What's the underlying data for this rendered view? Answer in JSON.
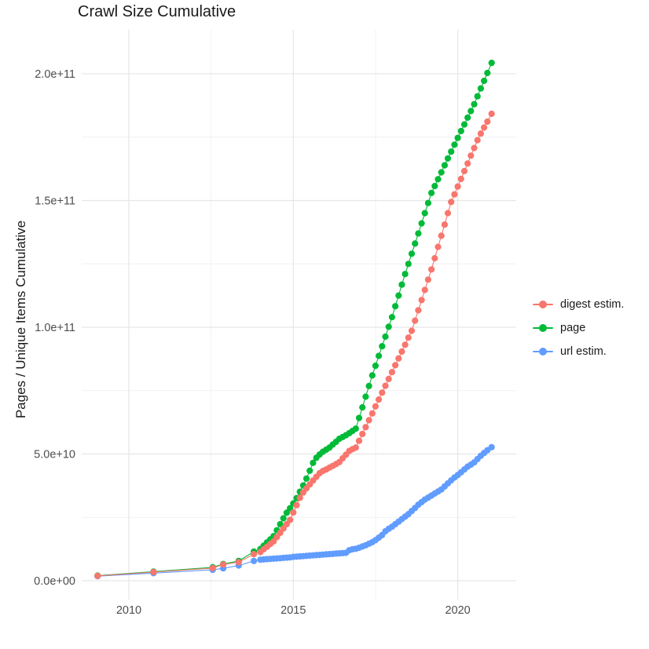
{
  "title": "Crawl Size Cumulative",
  "chart_data": {
    "type": "scatter",
    "title": "Crawl Size Cumulative",
    "xlabel": "",
    "ylabel": "Pages / Unique Items Cumulative",
    "values_in": "billions (1e9)",
    "xlim": [
      2008.57,
      2021.77
    ],
    "ylim_billions": [
      0,
      217
    ],
    "grid": "on",
    "legend_position": "right",
    "x_ticks": [
      {
        "v": 2010,
        "label": "2010"
      },
      {
        "v": 2015,
        "label": "2015"
      },
      {
        "v": 2020,
        "label": "2020"
      }
    ],
    "x_minor": [
      2012.5,
      2017.5
    ],
    "y_ticks": [
      {
        "v": 0,
        "label": "0.0e+00"
      },
      {
        "v": 50,
        "label": "5.0e+10"
      },
      {
        "v": 100,
        "label": "1.0e+11"
      },
      {
        "v": 150,
        "label": "1.5e+11"
      },
      {
        "v": 200,
        "label": "2.0e+11"
      }
    ],
    "y_minor": [
      25,
      75,
      125,
      175
    ],
    "series": [
      {
        "name": "digest estim.",
        "color": "#F8766D",
        "points": [
          [
            2009.05,
            1.9
          ],
          [
            2010.75,
            3.4
          ],
          [
            2012.55,
            5.0
          ],
          [
            2012.87,
            6.4
          ],
          [
            2013.34,
            7.3
          ],
          [
            2013.8,
            10.5
          ],
          [
            2014.0,
            11.3
          ],
          [
            2014.1,
            12.4
          ],
          [
            2014.2,
            13.4
          ],
          [
            2014.3,
            14.5
          ],
          [
            2014.4,
            15.5
          ],
          [
            2014.5,
            17.2
          ],
          [
            2014.6,
            18.9
          ],
          [
            2014.7,
            20.6
          ],
          [
            2014.8,
            22.3
          ],
          [
            2014.9,
            24.0
          ],
          [
            2015.0,
            26.9
          ],
          [
            2015.1,
            29.8
          ],
          [
            2015.2,
            32.7
          ],
          [
            2015.3,
            34.8
          ],
          [
            2015.4,
            36.4
          ],
          [
            2015.5,
            38.0
          ],
          [
            2015.6,
            39.5
          ],
          [
            2015.7,
            41.0
          ],
          [
            2015.8,
            42.4
          ],
          [
            2015.9,
            43.3
          ],
          [
            2016.0,
            43.9
          ],
          [
            2016.1,
            44.6
          ],
          [
            2016.2,
            45.3
          ],
          [
            2016.3,
            46.0
          ],
          [
            2016.4,
            46.8
          ],
          [
            2016.5,
            48.3
          ],
          [
            2016.6,
            49.7
          ],
          [
            2016.7,
            51.2
          ],
          [
            2016.8,
            51.9
          ],
          [
            2016.9,
            52.5
          ],
          [
            2017.0,
            55.2
          ],
          [
            2017.1,
            57.9
          ],
          [
            2017.2,
            60.6
          ],
          [
            2017.3,
            63.3
          ],
          [
            2017.4,
            66.0
          ],
          [
            2017.5,
            68.8
          ],
          [
            2017.6,
            71.5
          ],
          [
            2017.7,
            74.2
          ],
          [
            2017.8,
            76.9
          ],
          [
            2017.9,
            79.6
          ],
          [
            2018.0,
            82.3
          ],
          [
            2018.1,
            85.0
          ],
          [
            2018.2,
            87.7
          ],
          [
            2018.3,
            90.4
          ],
          [
            2018.4,
            93.1
          ],
          [
            2018.5,
            95.9
          ],
          [
            2018.6,
            98.6
          ],
          [
            2018.7,
            102.6
          ],
          [
            2018.8,
            106.7
          ],
          [
            2018.9,
            110.7
          ],
          [
            2019.0,
            114.7
          ],
          [
            2019.1,
            118.8
          ],
          [
            2019.2,
            122.8
          ],
          [
            2019.3,
            127.2
          ],
          [
            2019.4,
            131.7
          ],
          [
            2019.5,
            136.1
          ],
          [
            2019.6,
            140.5
          ],
          [
            2019.7,
            145.0
          ],
          [
            2019.8,
            149.4
          ],
          [
            2019.9,
            152.4
          ],
          [
            2020.0,
            155.5
          ],
          [
            2020.1,
            158.5
          ],
          [
            2020.2,
            161.6
          ],
          [
            2020.3,
            164.6
          ],
          [
            2020.4,
            167.7
          ],
          [
            2020.5,
            170.7
          ],
          [
            2020.6,
            173.8
          ],
          [
            2020.7,
            176.4
          ],
          [
            2020.8,
            178.8
          ],
          [
            2020.9,
            181.1
          ],
          [
            2021.03,
            184.2
          ]
        ]
      },
      {
        "name": "page",
        "color": "#00BA38",
        "points": [
          [
            2009.05,
            2.0
          ],
          [
            2010.75,
            3.6
          ],
          [
            2012.55,
            5.3
          ],
          [
            2012.87,
            6.6
          ],
          [
            2013.34,
            7.8
          ],
          [
            2013.8,
            11.5
          ],
          [
            2014.0,
            12.5
          ],
          [
            2014.1,
            13.8
          ],
          [
            2014.2,
            15.1
          ],
          [
            2014.3,
            16.3
          ],
          [
            2014.4,
            17.6
          ],
          [
            2014.5,
            19.9
          ],
          [
            2014.6,
            22.3
          ],
          [
            2014.7,
            24.6
          ],
          [
            2014.8,
            26.8
          ],
          [
            2014.9,
            28.6
          ],
          [
            2015.0,
            30.5
          ],
          [
            2015.1,
            32.6
          ],
          [
            2015.2,
            35.1
          ],
          [
            2015.3,
            37.6
          ],
          [
            2015.4,
            40.3
          ],
          [
            2015.5,
            43.4
          ],
          [
            2015.6,
            46.5
          ],
          [
            2015.7,
            48.5
          ],
          [
            2015.8,
            49.8
          ],
          [
            2015.9,
            50.9
          ],
          [
            2016.0,
            51.7
          ],
          [
            2016.1,
            52.5
          ],
          [
            2016.2,
            53.7
          ],
          [
            2016.3,
            54.8
          ],
          [
            2016.4,
            56.0
          ],
          [
            2016.5,
            56.7
          ],
          [
            2016.6,
            57.4
          ],
          [
            2016.7,
            58.2
          ],
          [
            2016.8,
            59.1
          ],
          [
            2016.9,
            60.0
          ],
          [
            2017.0,
            64.2
          ],
          [
            2017.1,
            68.4
          ],
          [
            2017.2,
            72.6
          ],
          [
            2017.3,
            76.8
          ],
          [
            2017.4,
            81.0
          ],
          [
            2017.5,
            84.8
          ],
          [
            2017.6,
            88.7
          ],
          [
            2017.7,
            92.5
          ],
          [
            2017.8,
            96.3
          ],
          [
            2017.9,
            100.2
          ],
          [
            2018.0,
            104.0
          ],
          [
            2018.1,
            108.3
          ],
          [
            2018.2,
            112.5
          ],
          [
            2018.3,
            116.8
          ],
          [
            2018.4,
            121.0
          ],
          [
            2018.5,
            125.0
          ],
          [
            2018.6,
            129.0
          ],
          [
            2018.7,
            133.0
          ],
          [
            2018.8,
            137.0
          ],
          [
            2018.9,
            141.0
          ],
          [
            2019.0,
            145.0
          ],
          [
            2019.1,
            149.0
          ],
          [
            2019.2,
            153.0
          ],
          [
            2019.3,
            155.7
          ],
          [
            2019.4,
            158.4
          ],
          [
            2019.5,
            161.1
          ],
          [
            2019.6,
            163.9
          ],
          [
            2019.7,
            166.6
          ],
          [
            2019.8,
            169.3
          ],
          [
            2019.9,
            172.0
          ],
          [
            2020.0,
            174.7
          ],
          [
            2020.1,
            177.4
          ],
          [
            2020.2,
            180.0
          ],
          [
            2020.3,
            182.7
          ],
          [
            2020.4,
            185.3
          ],
          [
            2020.5,
            188.0
          ],
          [
            2020.6,
            191.1
          ],
          [
            2020.7,
            194.2
          ],
          [
            2020.8,
            197.2
          ],
          [
            2020.9,
            200.3
          ],
          [
            2021.03,
            204.3
          ]
        ]
      },
      {
        "name": "url estim.",
        "color": "#619CFF",
        "points": [
          [
            2009.05,
            1.8
          ],
          [
            2010.75,
            3.0
          ],
          [
            2012.55,
            4.3
          ],
          [
            2012.87,
            4.9
          ],
          [
            2013.34,
            6.0
          ],
          [
            2013.8,
            7.8
          ],
          [
            2014.0,
            8.3
          ],
          [
            2014.1,
            8.4
          ],
          [
            2014.2,
            8.5
          ],
          [
            2014.3,
            8.6
          ],
          [
            2014.4,
            8.7
          ],
          [
            2014.5,
            8.8
          ],
          [
            2014.6,
            8.9
          ],
          [
            2014.7,
            9.0
          ],
          [
            2014.8,
            9.1
          ],
          [
            2014.9,
            9.2
          ],
          [
            2015.0,
            9.4
          ],
          [
            2015.1,
            9.5
          ],
          [
            2015.2,
            9.6
          ],
          [
            2015.3,
            9.7
          ],
          [
            2015.4,
            9.8
          ],
          [
            2015.5,
            9.9
          ],
          [
            2015.6,
            10.0
          ],
          [
            2015.7,
            10.1
          ],
          [
            2015.8,
            10.2
          ],
          [
            2015.9,
            10.3
          ],
          [
            2016.0,
            10.4
          ],
          [
            2016.1,
            10.5
          ],
          [
            2016.2,
            10.6
          ],
          [
            2016.3,
            10.7
          ],
          [
            2016.4,
            10.8
          ],
          [
            2016.5,
            10.9
          ],
          [
            2016.6,
            11.0
          ],
          [
            2016.7,
            12.0
          ],
          [
            2016.8,
            12.4
          ],
          [
            2016.9,
            12.6
          ],
          [
            2017.0,
            13.0
          ],
          [
            2017.1,
            13.5
          ],
          [
            2017.2,
            14.0
          ],
          [
            2017.3,
            14.6
          ],
          [
            2017.4,
            15.2
          ],
          [
            2017.5,
            16.0
          ],
          [
            2017.6,
            17.0
          ],
          [
            2017.7,
            18.0
          ],
          [
            2017.8,
            19.5
          ],
          [
            2017.9,
            20.5
          ],
          [
            2018.0,
            21.3
          ],
          [
            2018.1,
            22.3
          ],
          [
            2018.2,
            23.3
          ],
          [
            2018.3,
            24.3
          ],
          [
            2018.4,
            25.3
          ],
          [
            2018.5,
            26.3
          ],
          [
            2018.6,
            27.5
          ],
          [
            2018.7,
            28.7
          ],
          [
            2018.8,
            30.0
          ],
          [
            2018.9,
            31.0
          ],
          [
            2019.0,
            32.0
          ],
          [
            2019.1,
            32.8
          ],
          [
            2019.2,
            33.6
          ],
          [
            2019.3,
            34.4
          ],
          [
            2019.4,
            35.2
          ],
          [
            2019.5,
            36.0
          ],
          [
            2019.6,
            37.2
          ],
          [
            2019.7,
            38.4
          ],
          [
            2019.8,
            39.6
          ],
          [
            2019.9,
            40.7
          ],
          [
            2020.0,
            41.7
          ],
          [
            2020.1,
            42.8
          ],
          [
            2020.2,
            43.9
          ],
          [
            2020.3,
            45.0
          ],
          [
            2020.4,
            45.8
          ],
          [
            2020.5,
            46.7
          ],
          [
            2020.6,
            48.0
          ],
          [
            2020.7,
            49.3
          ],
          [
            2020.8,
            50.4
          ],
          [
            2020.9,
            51.5
          ],
          [
            2021.03,
            52.7
          ]
        ]
      }
    ]
  }
}
